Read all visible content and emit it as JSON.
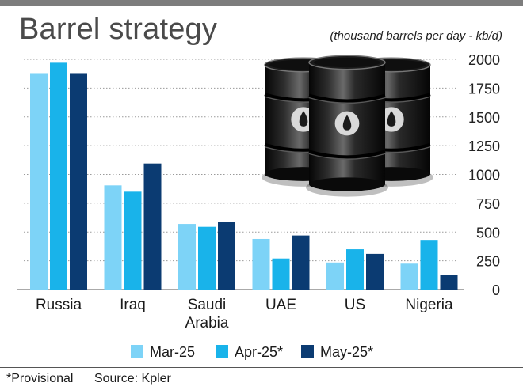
{
  "title": "Barrel strategy",
  "subtitle": "(thousand barrels per day - kb/d)",
  "footer": {
    "note": "*Provisional",
    "source": "Source: Kpler"
  },
  "colors": {
    "Mar-25": "#7dd3f7",
    "Apr-25*": "#19b3ea",
    "May-25*": "#0b3b72"
  },
  "illustration": "oil-barrels",
  "chart_data": {
    "type": "bar",
    "categories": [
      "Russia",
      "Iraq",
      "Saudi Arabia",
      "UAE",
      "US",
      "Nigeria"
    ],
    "category_lines": [
      [
        "Russia"
      ],
      [
        "Iraq"
      ],
      [
        "Saudi",
        "Arabia"
      ],
      [
        "UAE"
      ],
      [
        "US"
      ],
      [
        "Nigeria"
      ]
    ],
    "series": [
      {
        "name": "Mar-25",
        "values": [
          1880,
          905,
          570,
          440,
          235,
          225
        ]
      },
      {
        "name": "Apr-25*",
        "values": [
          1970,
          850,
          545,
          270,
          350,
          425
        ]
      },
      {
        "name": "May-25*",
        "values": [
          1880,
          1095,
          590,
          470,
          310,
          125
        ]
      }
    ],
    "yticks": [
      0,
      250,
      500,
      750,
      1000,
      1250,
      1500,
      1750,
      2000
    ],
    "ylim": [
      0,
      2000
    ],
    "grid": true,
    "legend_position": "bottom"
  }
}
